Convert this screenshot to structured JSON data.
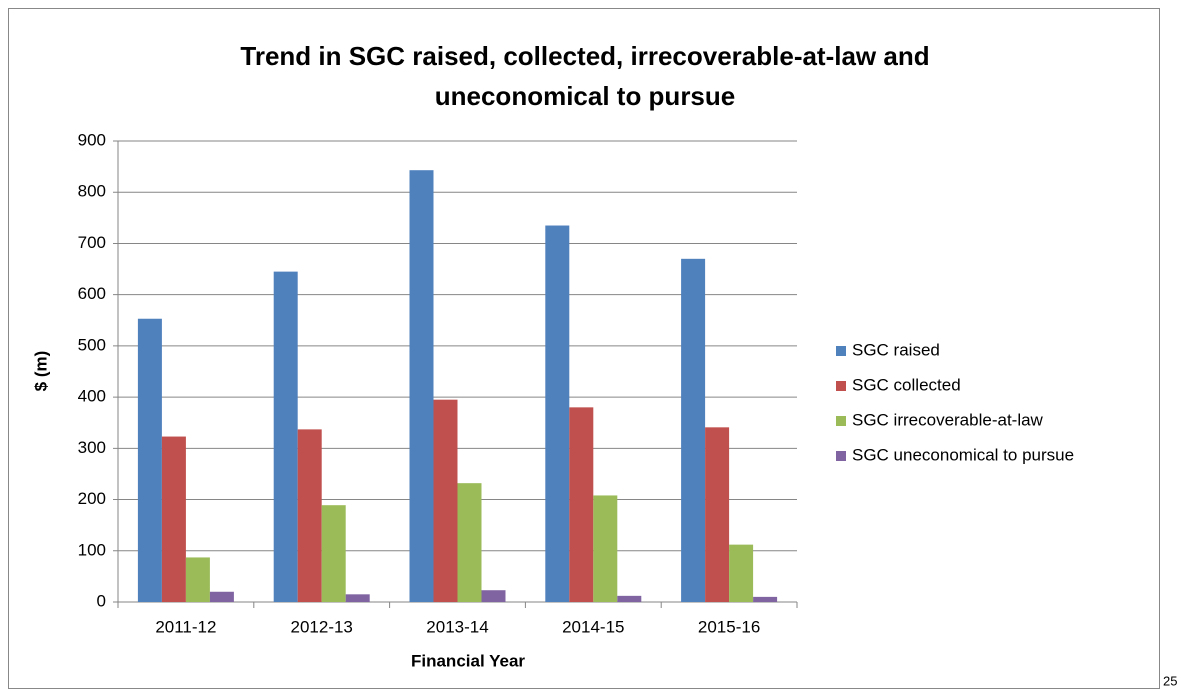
{
  "chart_data": {
    "type": "bar",
    "title": "Trend in SGC raised, collected, irrecoverable-at-law and uneconomical to pursue",
    "x_label": "Financial Year",
    "y_label": "$ (m)",
    "categories": [
      "2011-12",
      "2012-13",
      "2013-14",
      "2014-15",
      "2015-16"
    ],
    "series": [
      {
        "name": "SGC raised",
        "color": "#4f81bd",
        "values": [
          553,
          645,
          843,
          735,
          670
        ]
      },
      {
        "name": "SGC collected",
        "color": "#c0504d",
        "values": [
          323,
          337,
          395,
          380,
          341
        ]
      },
      {
        "name": "SGC irrecoverable-at-law",
        "color": "#9bbb59",
        "values": [
          87,
          189,
          232,
          208,
          112
        ]
      },
      {
        "name": "SGC uneconomical to pursue",
        "color": "#8064a2",
        "values": [
          20,
          15,
          23,
          12,
          10
        ]
      }
    ],
    "ylim": [
      0,
      900
    ],
    "yticks": [
      0,
      100,
      200,
      300,
      400,
      500,
      600,
      700,
      800,
      900
    ],
    "grid": true,
    "legend": "right"
  },
  "page_number": "25"
}
